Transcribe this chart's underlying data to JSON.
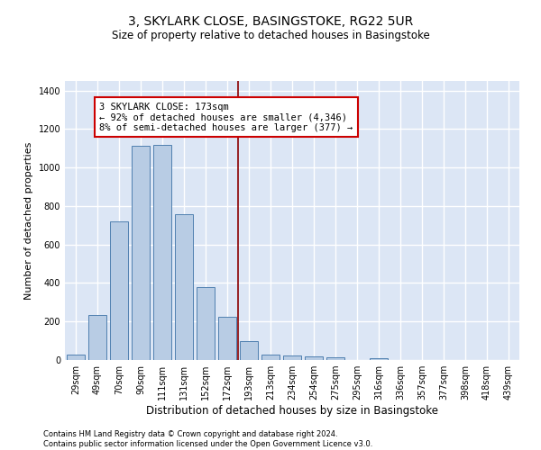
{
  "title": "3, SKYLARK CLOSE, BASINGSTOKE, RG22 5UR",
  "subtitle": "Size of property relative to detached houses in Basingstoke",
  "xlabel": "Distribution of detached houses by size in Basingstoke",
  "ylabel": "Number of detached properties",
  "categories": [
    "29sqm",
    "49sqm",
    "70sqm",
    "90sqm",
    "111sqm",
    "131sqm",
    "152sqm",
    "172sqm",
    "193sqm",
    "213sqm",
    "234sqm",
    "254sqm",
    "275sqm",
    "295sqm",
    "316sqm",
    "336sqm",
    "357sqm",
    "377sqm",
    "398sqm",
    "418sqm",
    "439sqm"
  ],
  "values": [
    30,
    235,
    720,
    1115,
    1120,
    760,
    380,
    225,
    100,
    30,
    25,
    20,
    15,
    0,
    10,
    0,
    0,
    0,
    0,
    0,
    0
  ],
  "bar_color": "#b8cce4",
  "bar_edge_color": "#5080b0",
  "vline_x": 7.5,
  "vline_color": "#8B0000",
  "annotation_text": "3 SKYLARK CLOSE: 173sqm\n← 92% of detached houses are smaller (4,346)\n8% of semi-detached houses are larger (377) →",
  "annotation_box_color": "white",
  "annotation_box_edgecolor": "#cc0000",
  "ylim": [
    0,
    1450
  ],
  "yticks": [
    0,
    200,
    400,
    600,
    800,
    1000,
    1200,
    1400
  ],
  "bg_color": "#dce6f5",
  "grid_color": "white",
  "title_fontsize": 10,
  "subtitle_fontsize": 8.5,
  "xlabel_fontsize": 8.5,
  "ylabel_fontsize": 8,
  "tick_fontsize": 7,
  "annot_fontsize": 7.5,
  "footer_line1": "Contains HM Land Registry data © Crown copyright and database right 2024.",
  "footer_line2": "Contains public sector information licensed under the Open Government Licence v3.0."
}
